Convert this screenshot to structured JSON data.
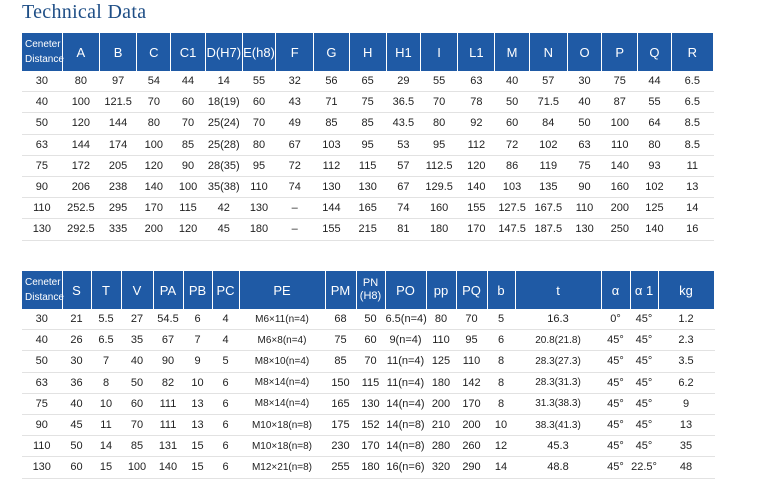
{
  "title": "Technical Data",
  "table1": {
    "headers": [
      "Ceneter Distance",
      "A",
      "B",
      "C",
      "C1",
      "D(H7)",
      "E(h8)",
      "F",
      "G",
      "H",
      "H1",
      "I",
      "L1",
      "M",
      "N",
      "O",
      "P",
      "Q",
      "R"
    ],
    "rows": [
      [
        "30",
        "80",
        "97",
        "54",
        "44",
        "14",
        "55",
        "32",
        "56",
        "65",
        "29",
        "55",
        "63",
        "40",
        "57",
        "30",
        "75",
        "44",
        "6.5"
      ],
      [
        "40",
        "100",
        "121.5",
        "70",
        "60",
        "18(19)",
        "60",
        "43",
        "71",
        "75",
        "36.5",
        "70",
        "78",
        "50",
        "71.5",
        "40",
        "87",
        "55",
        "6.5"
      ],
      [
        "50",
        "120",
        "144",
        "80",
        "70",
        "25(24)",
        "70",
        "49",
        "85",
        "85",
        "43.5",
        "80",
        "92",
        "60",
        "84",
        "50",
        "100",
        "64",
        "8.5"
      ],
      [
        "63",
        "144",
        "174",
        "100",
        "85",
        "25(28)",
        "80",
        "67",
        "103",
        "95",
        "53",
        "95",
        "112",
        "72",
        "102",
        "63",
        "110",
        "80",
        "8.5"
      ],
      [
        "75",
        "172",
        "205",
        "120",
        "90",
        "28(35)",
        "95",
        "72",
        "112",
        "115",
        "57",
        "112.5",
        "120",
        "86",
        "119",
        "75",
        "140",
        "93",
        "11"
      ],
      [
        "90",
        "206",
        "238",
        "140",
        "100",
        "35(38)",
        "110",
        "74",
        "130",
        "130",
        "67",
        "129.5",
        "140",
        "103",
        "135",
        "90",
        "160",
        "102",
        "13"
      ],
      [
        "110",
        "252.5",
        "295",
        "170",
        "115",
        "42",
        "130",
        "–",
        "144",
        "165",
        "74",
        "160",
        "155",
        "127.5",
        "167.5",
        "110",
        "200",
        "125",
        "14"
      ],
      [
        "130",
        "292.5",
        "335",
        "200",
        "120",
        "45",
        "180",
        "–",
        "155",
        "215",
        "81",
        "180",
        "170",
        "147.5",
        "187.5",
        "130",
        "250",
        "140",
        "16"
      ]
    ]
  },
  "table2": {
    "headers": [
      "Ceneter Distance",
      "S",
      "T",
      "V",
      "PA",
      "PB",
      "PC",
      "PE",
      "PM",
      "PN (H8)",
      "PO",
      "pp",
      "PQ",
      "b",
      "t",
      "α",
      "α 1",
      "kg"
    ],
    "rows": [
      [
        "30",
        "21",
        "5.5",
        "27",
        "54.5",
        "6",
        "4",
        "M6×11(n=4)",
        "68",
        "50",
        "6.5(n=4)",
        "80",
        "70",
        "5",
        "16.3",
        "0°",
        "45°",
        "1.2"
      ],
      [
        "40",
        "26",
        "6.5",
        "35",
        "67",
        "7",
        "4",
        "M6×8(n=4)",
        "75",
        "60",
        "9(n=4)",
        "110",
        "95",
        "6",
        "20.8(21.8)",
        "45°",
        "45°",
        "2.3"
      ],
      [
        "50",
        "30",
        "7",
        "40",
        "90",
        "9",
        "5",
        "M8×10(n=4)",
        "85",
        "70",
        "11(n=4)",
        "125",
        "110",
        "8",
        "28.3(27.3)",
        "45°",
        "45°",
        "3.5"
      ],
      [
        "63",
        "36",
        "8",
        "50",
        "82",
        "10",
        "6",
        "M8×14(n=4)",
        "150",
        "115",
        "11(n=4)",
        "180",
        "142",
        "8",
        "28.3(31.3)",
        "45°",
        "45°",
        "6.2"
      ],
      [
        "75",
        "40",
        "10",
        "60",
        "111",
        "13",
        "6",
        "M8×14(n=4)",
        "165",
        "130",
        "14(n=4)",
        "200",
        "170",
        "8",
        "31.3(38.3)",
        "45°",
        "45°",
        "9"
      ],
      [
        "90",
        "45",
        "11",
        "70",
        "111",
        "13",
        "6",
        "M10×18(n=8)",
        "175",
        "152",
        "14(n=8)",
        "210",
        "200",
        "10",
        "38.3(41.3)",
        "45°",
        "45°",
        "13"
      ],
      [
        "110",
        "50",
        "14",
        "85",
        "131",
        "15",
        "6",
        "M10×18(n=8)",
        "230",
        "170",
        "14(n=8)",
        "280",
        "260",
        "12",
        "45.3",
        "45°",
        "45°",
        "35"
      ],
      [
        "130",
        "60",
        "15",
        "100",
        "140",
        "15",
        "6",
        "M12×21(n=8)",
        "255",
        "180",
        "16(n=6)",
        "320",
        "290",
        "14",
        "48.8",
        "45°",
        "22.5°",
        "48"
      ]
    ]
  }
}
